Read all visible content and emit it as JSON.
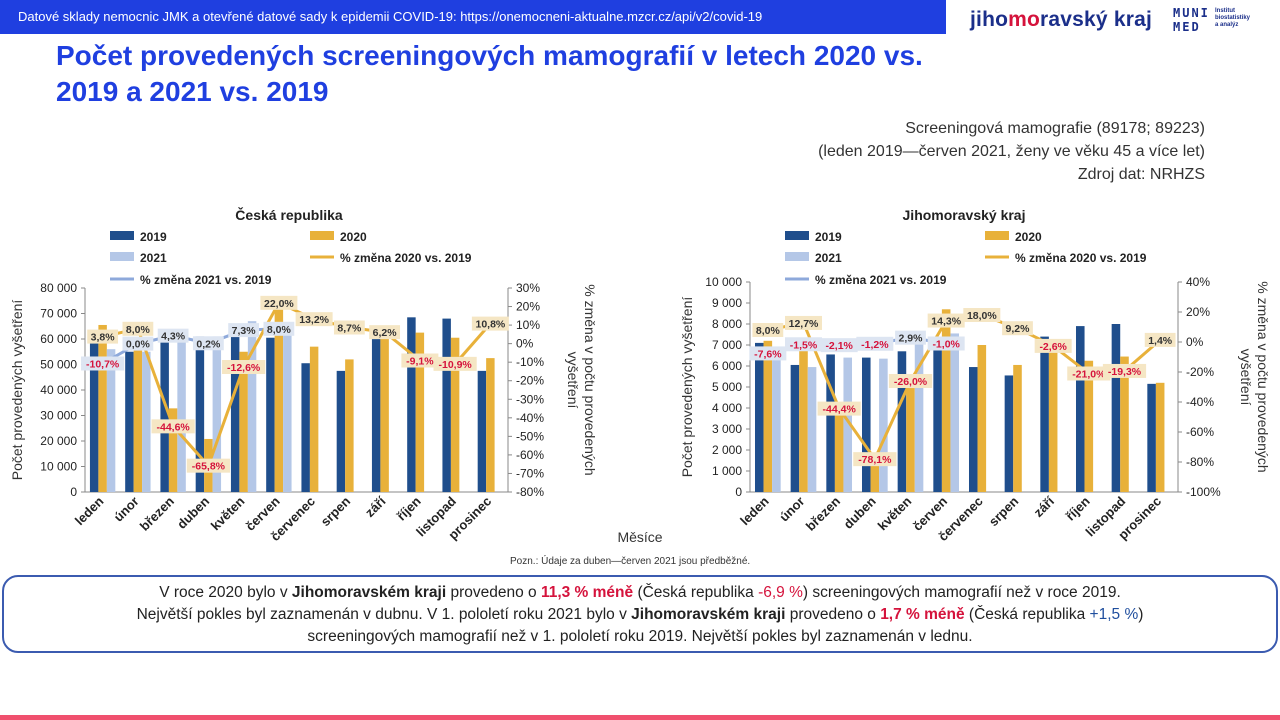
{
  "header": {
    "banner_text": "Datové sklady nemocnic JMK a otevřené datové sady k epidemii COVID-19: https://onemocneni-aktualne.mzcr.cz/api/v2/covid-19",
    "brand_pre": "jiho",
    "brand_mo": "mo",
    "brand_post": "ravský kraj",
    "muni_line1": "MUNI",
    "muni_line2": "MED",
    "muni_inst1": "Institut",
    "muni_inst2": "biostatistiky",
    "muni_inst3": "a analýz"
  },
  "title": "Počet provedených screeningových mamografií v letech 2020 vs. 2019 a 2021 vs. 2019",
  "subinfo": {
    "line1": "Screeningová mamografie (89178; 89223)",
    "line2": "(leden 2019—červen 2021, ženy ve věku 45 a více let)",
    "line3": "Zdroj dat: NRHZS"
  },
  "shared_xlabel": "Měsíce",
  "note": "Pozn.: Údaje za duben—červen  2021 jsou předběžné.",
  "summary": {
    "l1_a": "V roce 2020 bylo v ",
    "l1_b": "Jihomoravském kraji",
    "l1_c": " provedeno o ",
    "l1_d": "11,3 % méně",
    "l1_e": " (Česká republika ",
    "l1_f": "-6,9 %",
    "l1_g": ") screeningových mamografií než v roce 2019.",
    "l2_a": "Největší pokles byl zaznamenán v dubnu. V 1. pololetí  roku 2021 bylo v ",
    "l2_b": "Jihomoravském kraji",
    "l2_c": " provedeno o ",
    "l2_d": "1,7 % méně",
    "l2_e": " (Česká republika ",
    "l2_f": "+1,5 %",
    "l2_g": ")",
    "l3": "screeningových mamografií než v 1. pololetí roku 2019. Největší pokles byl zaznamenán v lednu."
  },
  "colors": {
    "y2019": "#1f4e8c",
    "y2020": "#e8b13a",
    "y2021": "#b4c7e7",
    "line2020": "#e8b13a",
    "line2021": "#8ea9db",
    "neg_label": "#d5133c"
  },
  "chart_data": [
    {
      "type": "bar",
      "title": "Česká republika",
      "categories": [
        "leden",
        "únor",
        "březen",
        "duben",
        "květen",
        "červen",
        "červenec",
        "srpen",
        "září",
        "říjen",
        "listopad",
        "prosinec"
      ],
      "series": [
        {
          "name": "2019",
          "values": [
            60500,
            55000,
            59500,
            61000,
            61000,
            60500,
            50500,
            47500,
            61000,
            68500,
            68000,
            47500
          ]
        },
        {
          "name": "2020",
          "values": [
            65500,
            60000,
            32800,
            20800,
            55000,
            74000,
            57000,
            52000,
            64500,
            62500,
            60500,
            52500
          ]
        },
        {
          "name": "2021",
          "values": [
            56000,
            55000,
            62000,
            61000,
            67000,
            65500,
            null,
            null,
            null,
            null,
            null,
            null
          ]
        }
      ],
      "pct_series": [
        {
          "name": "% změna 2020 vs. 2019",
          "values": [
            3.8,
            8.0,
            -44.6,
            -65.8,
            -12.6,
            22.0,
            13.2,
            8.7,
            6.2,
            -9.1,
            -10.9,
            10.8
          ],
          "labels": [
            "3,8%",
            "8,0%",
            "-44,6%",
            "-65,8%",
            "-12,6%",
            "22,0%",
            "13,2%",
            "8,7%",
            "6,2%",
            "-9,1%",
            "-10,9%",
            "10,8%"
          ]
        },
        {
          "name": "% změna 2021 vs. 2019",
          "values": [
            -10.7,
            0.0,
            4.3,
            0.2,
            7.3,
            8.0,
            null,
            null,
            null,
            null,
            null,
            null
          ],
          "labels": [
            "-10,7%",
            "0,0%",
            "4,3%",
            "0,2%",
            "7,3%",
            "8,0%",
            "",
            "",
            "",
            "",
            "",
            ""
          ]
        }
      ],
      "ylabel": "Počet provedených vyšetření",
      "y2label": "% změna v počtu provedených vyšetření",
      "ylim": [
        0,
        80000
      ],
      "yticks": [
        0,
        10000,
        20000,
        30000,
        40000,
        50000,
        60000,
        70000,
        80000
      ],
      "ytick_labels": [
        "0",
        "10 000",
        "20 000",
        "30 000",
        "40 000",
        "50 000",
        "60 000",
        "70 000",
        "80 000"
      ],
      "y2lim": [
        -80,
        30
      ],
      "y2ticks": [
        -80,
        -70,
        -60,
        -50,
        -40,
        -30,
        -20,
        -10,
        0,
        10,
        20,
        30
      ],
      "y2tick_labels": [
        "-80%",
        "-70%",
        "-60%",
        "-50%",
        "-40%",
        "-30%",
        "-20%",
        "-10%",
        "0%",
        "10%",
        "20%",
        "30%"
      ],
      "legend": {
        "placement": "top",
        "items": [
          "2019",
          "2020",
          "2021",
          "% změna 2020 vs. 2019",
          "% změna 2021 vs. 2019"
        ]
      }
    },
    {
      "type": "bar",
      "title": "Jihomoravský kraj",
      "categories": [
        "leden",
        "únor",
        "březen",
        "duben",
        "květen",
        "červen",
        "červenec",
        "srpen",
        "září",
        "říjen",
        "listopad",
        "prosinec"
      ],
      "series": [
        {
          "name": "2019",
          "values": [
            7100,
            6050,
            6550,
            6400,
            6700,
            6900,
            5950,
            5550,
            7400,
            7900,
            8000,
            5150
          ]
        },
        {
          "name": "2020",
          "values": [
            7200,
            6800,
            3650,
            1400,
            4950,
            8700,
            7000,
            6050,
            7000,
            6250,
            6450,
            5200
          ]
        },
        {
          "name": "2021",
          "values": [
            6550,
            5950,
            6400,
            6350,
            7200,
            7550,
            null,
            null,
            null,
            null,
            null,
            null
          ]
        }
      ],
      "pct_series": [
        {
          "name": "% změna 2020 vs. 2019",
          "values": [
            8.0,
            12.7,
            -44.4,
            -78.1,
            -26.0,
            14.3,
            18.0,
            9.2,
            -2.6,
            -21.0,
            -19.3,
            1.4
          ],
          "labels": [
            "8,0%",
            "12,7%",
            "-44,4%",
            "-78,1%",
            "-26,0%",
            "14,3%",
            "18,0%",
            "9,2%",
            "-2,6%",
            "-21,0%",
            "-19,3%",
            "1,4%"
          ]
        },
        {
          "name": "% změna 2021 vs. 2019",
          "values": [
            -7.6,
            -1.5,
            -2.1,
            -1.2,
            2.9,
            -1.0,
            null,
            null,
            null,
            null,
            null,
            null
          ],
          "labels": [
            "-7,6%",
            "-1,5%",
            "-2,1%",
            "-1,2%",
            "2,9%",
            "-1,0%",
            "",
            "",
            "",
            "",
            "",
            ""
          ]
        }
      ],
      "ylabel": "Počet provedených vyšetření",
      "y2label": "% změna v počtu provedených vyšetření",
      "ylim": [
        0,
        10000
      ],
      "yticks": [
        0,
        1000,
        2000,
        3000,
        4000,
        5000,
        6000,
        7000,
        8000,
        9000,
        10000
      ],
      "ytick_labels": [
        "0",
        "1 000",
        "2 000",
        "3 000",
        "4 000",
        "5 000",
        "6 000",
        "7 000",
        "8 000",
        "9 000",
        "10 000"
      ],
      "y2lim": [
        -100,
        40
      ],
      "y2ticks": [
        -100,
        -80,
        -60,
        -40,
        -20,
        0,
        20,
        40
      ],
      "y2tick_labels": [
        "-100%",
        "-80%",
        "-60%",
        "-40%",
        "-20%",
        "0%",
        "20%",
        "40%"
      ],
      "legend": {
        "placement": "top",
        "items": [
          "2019",
          "2020",
          "2021",
          "% změna 2020 vs. 2019",
          "% změna 2021 vs. 2019"
        ]
      }
    }
  ]
}
